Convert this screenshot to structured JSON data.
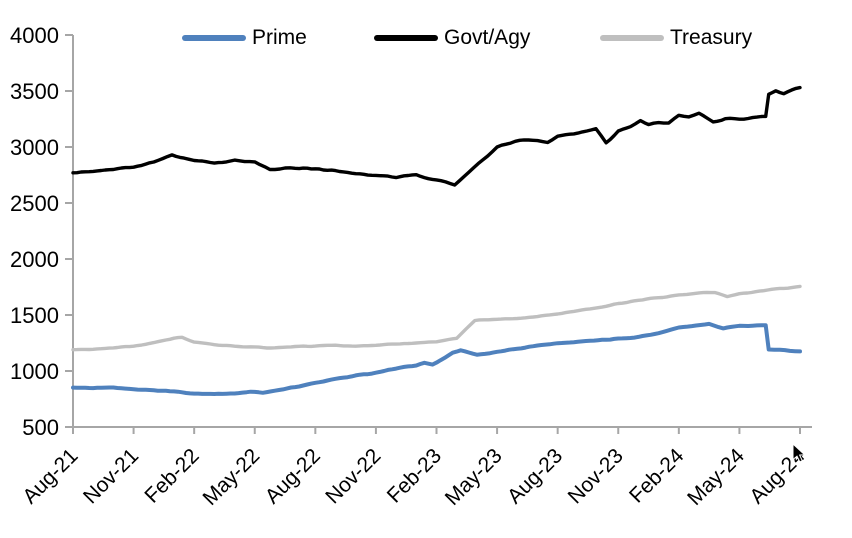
{
  "chart_data": {
    "type": "line",
    "title": "",
    "xlabel": "",
    "ylabel": "",
    "grid": false,
    "legend_position": "top",
    "axis_color": "#a6a6a6",
    "ylim": [
      500,
      4000
    ],
    "y_tick_labels": [
      "4000",
      "3500",
      "3000",
      "2500",
      "2000",
      "1500",
      "1000",
      "500"
    ],
    "x_tick_labels": [
      "Aug-21",
      "Nov-21",
      "Feb-22",
      "May-22",
      "Aug-22",
      "Nov-22",
      "Feb-23",
      "May-23",
      "Aug-23",
      "Nov-23",
      "Feb-24",
      "May-24",
      "Aug-24"
    ],
    "x_tick_positions_months": [
      0,
      3,
      6,
      9,
      12,
      15,
      18,
      21,
      24,
      27,
      30,
      33,
      36
    ],
    "x_range_months": [
      0,
      36
    ],
    "series": [
      {
        "name": "Prime",
        "color": "#4F81BD",
        "points": [
          [
            0,
            852
          ],
          [
            1,
            845
          ],
          [
            2,
            850
          ],
          [
            3,
            838
          ],
          [
            4,
            828
          ],
          [
            5,
            818
          ],
          [
            6,
            800
          ],
          [
            7,
            795
          ],
          [
            8,
            800
          ],
          [
            8.8,
            815
          ],
          [
            9.4,
            806
          ],
          [
            10,
            826
          ],
          [
            11,
            858
          ],
          [
            12,
            893
          ],
          [
            13,
            928
          ],
          [
            14,
            958
          ],
          [
            15,
            985
          ],
          [
            16,
            1020
          ],
          [
            17,
            1052
          ],
          [
            17.4,
            1070
          ],
          [
            17.8,
            1058
          ],
          [
            18,
            1075
          ],
          [
            18.8,
            1160
          ],
          [
            19.2,
            1185
          ],
          [
            20,
            1145
          ],
          [
            20.6,
            1158
          ],
          [
            21,
            1172
          ],
          [
            22,
            1200
          ],
          [
            23,
            1228
          ],
          [
            24,
            1248
          ],
          [
            25,
            1262
          ],
          [
            26,
            1272
          ],
          [
            27,
            1288
          ],
          [
            28,
            1305
          ],
          [
            29,
            1338
          ],
          [
            30,
            1390
          ],
          [
            31.5,
            1420
          ],
          [
            32.2,
            1383
          ],
          [
            33,
            1405
          ],
          [
            34.3,
            1408
          ],
          [
            34.45,
            1192
          ],
          [
            35,
            1190
          ],
          [
            35.5,
            1181
          ],
          [
            36,
            1175
          ]
        ]
      },
      {
        "name": "Govt/Agy",
        "color": "#000000",
        "points": [
          [
            0,
            2770
          ],
          [
            1,
            2778
          ],
          [
            2,
            2800
          ],
          [
            3,
            2825
          ],
          [
            4,
            2862
          ],
          [
            4.9,
            2930
          ],
          [
            5.5,
            2900
          ],
          [
            6,
            2882
          ],
          [
            7,
            2855
          ],
          [
            8,
            2885
          ],
          [
            8.5,
            2870
          ],
          [
            9,
            2865
          ],
          [
            9.75,
            2800
          ],
          [
            10.5,
            2815
          ],
          [
            11,
            2812
          ],
          [
            12,
            2805
          ],
          [
            13,
            2788
          ],
          [
            14,
            2765
          ],
          [
            15,
            2748
          ],
          [
            16,
            2735
          ],
          [
            17,
            2750
          ],
          [
            18,
            2705
          ],
          [
            18.9,
            2662
          ],
          [
            19.6,
            2780
          ],
          [
            20.3,
            2890
          ],
          [
            21,
            3000
          ],
          [
            21.9,
            3055
          ],
          [
            23,
            3062
          ],
          [
            23.5,
            3048
          ],
          [
            24,
            3095
          ],
          [
            25,
            3125
          ],
          [
            25.9,
            3160
          ],
          [
            26.4,
            3040
          ],
          [
            27,
            3140
          ],
          [
            27.6,
            3180
          ],
          [
            28.1,
            3235
          ],
          [
            28.5,
            3195
          ],
          [
            29,
            3220
          ],
          [
            29.5,
            3210
          ],
          [
            30,
            3280
          ],
          [
            30.5,
            3270
          ],
          [
            31,
            3300
          ],
          [
            31.7,
            3225
          ],
          [
            32.3,
            3250
          ],
          [
            33,
            3255
          ],
          [
            34.3,
            3268
          ],
          [
            34.45,
            3470
          ],
          [
            34.8,
            3505
          ],
          [
            35.2,
            3478
          ],
          [
            35.6,
            3505
          ],
          [
            36,
            3530
          ]
        ]
      },
      {
        "name": "Treasury",
        "color": "#BFBFBF",
        "points": [
          [
            0,
            1190
          ],
          [
            1,
            1196
          ],
          [
            2,
            1206
          ],
          [
            3,
            1222
          ],
          [
            4,
            1250
          ],
          [
            5,
            1290
          ],
          [
            5.4,
            1300
          ],
          [
            6,
            1258
          ],
          [
            7,
            1236
          ],
          [
            8,
            1222
          ],
          [
            9,
            1212
          ],
          [
            10,
            1205
          ],
          [
            11,
            1218
          ],
          [
            12,
            1222
          ],
          [
            13,
            1230
          ],
          [
            14,
            1224
          ],
          [
            15,
            1230
          ],
          [
            16,
            1240
          ],
          [
            17,
            1252
          ],
          [
            18,
            1262
          ],
          [
            19,
            1290
          ],
          [
            19.9,
            1452
          ],
          [
            21,
            1460
          ],
          [
            22,
            1470
          ],
          [
            23,
            1485
          ],
          [
            24,
            1510
          ],
          [
            25,
            1538
          ],
          [
            26,
            1566
          ],
          [
            27,
            1602
          ],
          [
            28,
            1632
          ],
          [
            29,
            1656
          ],
          [
            30,
            1678
          ],
          [
            31,
            1694
          ],
          [
            31.8,
            1702
          ],
          [
            32.4,
            1662
          ],
          [
            33,
            1690
          ],
          [
            34,
            1712
          ],
          [
            35,
            1734
          ],
          [
            36,
            1755
          ]
        ]
      }
    ]
  },
  "mouse_cursor": {
    "visible": true
  }
}
